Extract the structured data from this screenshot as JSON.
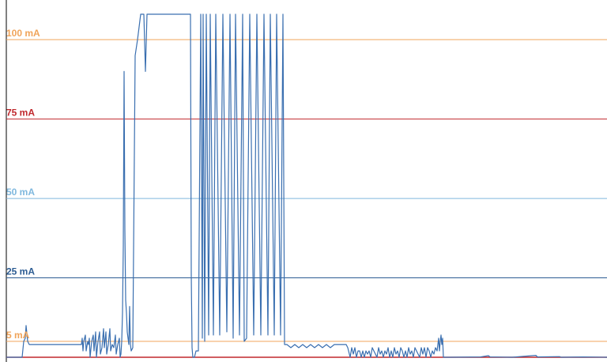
{
  "chart_data": {
    "type": "line",
    "title": "",
    "xlabel": "",
    "ylabel": "",
    "xlim": [
      0,
      760
    ],
    "ylim": [
      0,
      110
    ],
    "grid": false,
    "legend": "none",
    "reference_lines": [
      {
        "label": "100 mA",
        "value": 100,
        "color": "#f0a45a"
      },
      {
        "label": "75 mA",
        "value": 75,
        "color": "#c0282d"
      },
      {
        "label": "50 mA",
        "value": 50,
        "color": "#7fb8de"
      },
      {
        "label": "25 mA",
        "value": 25,
        "color": "#2c5c93"
      },
      {
        "label": "5 mA",
        "value": 5,
        "color": "#f0a45a"
      },
      {
        "label": "",
        "value": 0,
        "color": "#c0282d"
      }
    ],
    "series": [
      {
        "color": "#3a6fb0",
        "points": [
          [
            0,
            0
          ],
          [
            20,
            0
          ],
          [
            22,
            5
          ],
          [
            24,
            6
          ],
          [
            25,
            10
          ],
          [
            27,
            5
          ],
          [
            29,
            4
          ],
          [
            40,
            4
          ],
          [
            45,
            4
          ],
          [
            50,
            4
          ],
          [
            60,
            4
          ],
          [
            70,
            4
          ],
          [
            80,
            4
          ],
          [
            90,
            4
          ],
          [
            95,
            4
          ],
          [
            96,
            6
          ],
          [
            97,
            2
          ],
          [
            98,
            5
          ],
          [
            100,
            7
          ],
          [
            101,
            2
          ],
          [
            103,
            5
          ],
          [
            104,
            4
          ],
          [
            105,
            6
          ],
          [
            106,
            0
          ],
          [
            108,
            5
          ],
          [
            110,
            7
          ],
          [
            111,
            2
          ],
          [
            113,
            8
          ],
          [
            114,
            0
          ],
          [
            116,
            5
          ],
          [
            118,
            8
          ],
          [
            119,
            1
          ],
          [
            121,
            3
          ],
          [
            123,
            9
          ],
          [
            124,
            3
          ],
          [
            126,
            8
          ],
          [
            127,
            1
          ],
          [
            129,
            4
          ],
          [
            131,
            9
          ],
          [
            132,
            2
          ],
          [
            134,
            4
          ],
          [
            136,
            3
          ],
          [
            138,
            7
          ],
          [
            139,
            1
          ],
          [
            141,
            4
          ],
          [
            143,
            6
          ],
          [
            144,
            0
          ],
          [
            145,
            1
          ],
          [
            146,
            5
          ],
          [
            147,
            14
          ],
          [
            148,
            35
          ],
          [
            149,
            90
          ],
          [
            150,
            40
          ],
          [
            151,
            18
          ],
          [
            152,
            14
          ],
          [
            153,
            8
          ],
          [
            154,
            6
          ],
          [
            155,
            4
          ],
          [
            156,
            16
          ],
          [
            157,
            4
          ],
          [
            158,
            2
          ],
          [
            160,
            3
          ],
          [
            163,
            95
          ],
          [
            166,
            100
          ],
          [
            170,
            108
          ],
          [
            174,
            108
          ],
          [
            176,
            90
          ],
          [
            178,
            108
          ],
          [
            233,
            108
          ],
          [
            234,
            26
          ],
          [
            235,
            3
          ],
          [
            236,
            0
          ],
          [
            238,
            0
          ],
          [
            240,
            2
          ],
          [
            243,
            2
          ],
          [
            246,
            108
          ],
          [
            248,
            6
          ],
          [
            249,
            108
          ],
          [
            251,
            5
          ],
          [
            253,
            108
          ],
          [
            256,
            7
          ],
          [
            258,
            108
          ],
          [
            262,
            7
          ],
          [
            265,
            108
          ],
          [
            270,
            7
          ],
          [
            274,
            108
          ],
          [
            279,
            8
          ],
          [
            283,
            108
          ],
          [
            287,
            6
          ],
          [
            290,
            108
          ],
          [
            295,
            7
          ],
          [
            299,
            108
          ],
          [
            301,
            5
          ],
          [
            304,
            6
          ],
          [
            308,
            108
          ],
          [
            313,
            7
          ],
          [
            317,
            108
          ],
          [
            322,
            7
          ],
          [
            326,
            108
          ],
          [
            331,
            7
          ],
          [
            334,
            108
          ],
          [
            339,
            7
          ],
          [
            342,
            108
          ],
          [
            347,
            7
          ],
          [
            350,
            108
          ],
          [
            352,
            4
          ],
          [
            355,
            4
          ],
          [
            360,
            3
          ],
          [
            365,
            4
          ],
          [
            370,
            3
          ],
          [
            375,
            4
          ],
          [
            380,
            3
          ],
          [
            385,
            4
          ],
          [
            390,
            3
          ],
          [
            395,
            4
          ],
          [
            400,
            3
          ],
          [
            405,
            4
          ],
          [
            410,
            3
          ],
          [
            415,
            4
          ],
          [
            420,
            4
          ],
          [
            425,
            4
          ],
          [
            430,
            4
          ],
          [
            432,
            3
          ],
          [
            435,
            0
          ],
          [
            437,
            3
          ],
          [
            439,
            1
          ],
          [
            441,
            3
          ],
          [
            443,
            0
          ],
          [
            445,
            2
          ],
          [
            447,
            2
          ],
          [
            449,
            0
          ],
          [
            451,
            2
          ],
          [
            453,
            0
          ],
          [
            455,
            2
          ],
          [
            457,
            1
          ],
          [
            459,
            2
          ],
          [
            461,
            0
          ],
          [
            463,
            3
          ],
          [
            465,
            2
          ],
          [
            467,
            1
          ],
          [
            469,
            0
          ],
          [
            471,
            3
          ],
          [
            473,
            1
          ],
          [
            475,
            2
          ],
          [
            477,
            0
          ],
          [
            479,
            2
          ],
          [
            481,
            1
          ],
          [
            483,
            3
          ],
          [
            485,
            0
          ],
          [
            487,
            2
          ],
          [
            489,
            0
          ],
          [
            491,
            3
          ],
          [
            493,
            1
          ],
          [
            495,
            2
          ],
          [
            497,
            0
          ],
          [
            499,
            3
          ],
          [
            501,
            2
          ],
          [
            503,
            0
          ],
          [
            505,
            2
          ],
          [
            507,
            0
          ],
          [
            509,
            3
          ],
          [
            511,
            1
          ],
          [
            513,
            2
          ],
          [
            515,
            0
          ],
          [
            517,
            3
          ],
          [
            519,
            2
          ],
          [
            521,
            1
          ],
          [
            523,
            0
          ],
          [
            525,
            3
          ],
          [
            527,
            1
          ],
          [
            529,
            3
          ],
          [
            531,
            0
          ],
          [
            533,
            3
          ],
          [
            535,
            2
          ],
          [
            537,
            0
          ],
          [
            539,
            2
          ],
          [
            541,
            1
          ],
          [
            543,
            3
          ],
          [
            545,
            2
          ],
          [
            547,
            6
          ],
          [
            548,
            2
          ],
          [
            549,
            5
          ],
          [
            550,
            7
          ],
          [
            551,
            4
          ],
          [
            552,
            6
          ],
          [
            553,
            0
          ],
          [
            556,
            0
          ],
          [
            560,
            0
          ],
          [
            600,
            0.1
          ],
          [
            610,
            0.5
          ],
          [
            612,
            0.1
          ],
          [
            640,
            0
          ],
          [
            670,
            0.6
          ],
          [
            672,
            0.1
          ],
          [
            700,
            0.2
          ],
          [
            702,
            0
          ],
          [
            730,
            0.1
          ],
          [
            760,
            0
          ]
        ]
      }
    ]
  }
}
